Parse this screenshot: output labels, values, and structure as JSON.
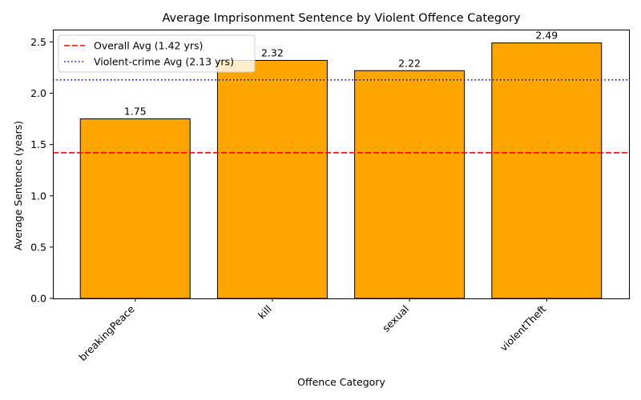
{
  "chart_data": {
    "type": "bar",
    "title": "Average Imprisonment Sentence by Violent Offence Category",
    "xlabel": "Offence Category",
    "ylabel": "Average Sentence (years)",
    "categories": [
      "breakingPeace",
      "kill",
      "sexual",
      "violentTheft"
    ],
    "values": [
      1.75,
      2.32,
      2.22,
      2.49
    ],
    "value_labels": [
      "1.75",
      "2.32",
      "2.22",
      "2.49"
    ],
    "ylim": [
      0,
      2.62
    ],
    "yticks": [
      0.0,
      0.5,
      1.0,
      1.5,
      2.0,
      2.5
    ],
    "ytick_labels": [
      "0.0",
      "0.5",
      "1.0",
      "1.5",
      "2.0",
      "2.5"
    ],
    "bar_color": "#ffa500",
    "bar_edge_color": "#000000",
    "grid": false,
    "legend_position": "top-left",
    "reference_lines": [
      {
        "label": "Overall Avg (1.42 yrs)",
        "value": 1.42,
        "color": "#ff0000",
        "style": "dashed"
      },
      {
        "label": "Violent-crime Avg (2.13 yrs)",
        "value": 2.13,
        "color": "#0000ff",
        "style": "dotted"
      }
    ]
  }
}
